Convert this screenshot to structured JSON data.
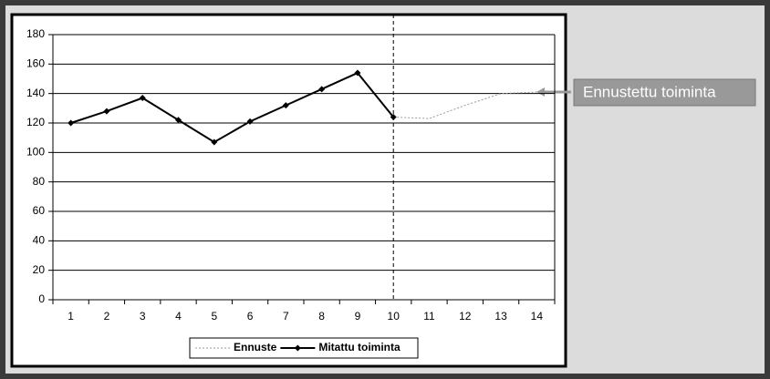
{
  "chart_data": {
    "type": "line",
    "categories": [
      "1",
      "2",
      "3",
      "4",
      "5",
      "6",
      "7",
      "8",
      "9",
      "10",
      "11",
      "12",
      "13",
      "14"
    ],
    "series": [
      {
        "name": "Ennuste",
        "color": "#999999",
        "dashed": true,
        "marker": "none",
        "values": [
          null,
          null,
          null,
          null,
          null,
          null,
          null,
          null,
          null,
          124,
          123,
          132,
          140,
          141
        ]
      },
      {
        "name": "Mitattu toiminta",
        "color": "#000000",
        "dashed": false,
        "marker": "diamond",
        "values": [
          120,
          128,
          137,
          122,
          107,
          121,
          132,
          143,
          154,
          124,
          null,
          null,
          null,
          null
        ]
      }
    ],
    "ylim": [
      0,
      180
    ],
    "yticks": [
      0,
      20,
      40,
      60,
      80,
      100,
      120,
      140,
      160,
      180
    ],
    "grid": true,
    "annotation": "Ennustettu toiminta"
  }
}
